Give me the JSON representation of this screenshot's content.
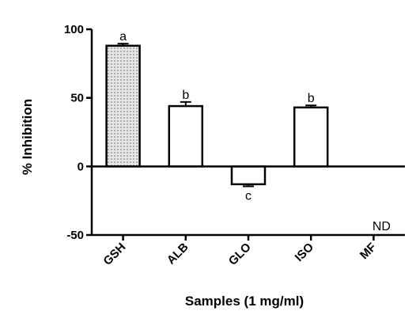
{
  "chart_data": {
    "type": "bar",
    "xlabel": "Samples (1 mg/ml)",
    "ylabel": "% Inhibition",
    "ylim": [
      -50,
      100
    ],
    "yticks": [
      -50,
      0,
      50,
      100
    ],
    "categories": [
      "GSH",
      "ALB",
      "GLO",
      "ISO",
      "MF"
    ],
    "values": [
      88,
      44,
      -13,
      43,
      null
    ],
    "errors": [
      1.5,
      3,
      1.5,
      1.5,
      null
    ],
    "letters": [
      "a",
      "b",
      "c",
      "b",
      ""
    ],
    "annotations": [
      "ND"
    ],
    "bar_fills": [
      "dotted",
      "white",
      "white",
      "white",
      "none"
    ],
    "grid": false,
    "legend": "none"
  }
}
